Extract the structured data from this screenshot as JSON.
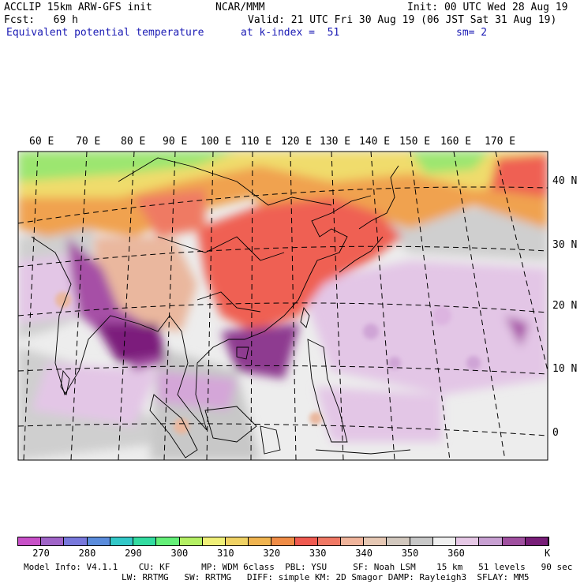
{
  "header": {
    "model": "ACCLIP 15km ARW-GFS init",
    "org": "NCAR/MMM",
    "init": "Init: 00 UTC Wed 28 Aug 19",
    "fcst": "Fcst:   69 h",
    "valid": "Valid: 21 UTC Fri 30 Aug 19 (06 JST Sat 31 Aug 19)",
    "field": "Equivalent potential temperature",
    "level": "at k-index =  51",
    "smooth": "sm= 2"
  },
  "map": {
    "lon_labels": [
      "60 E",
      "70 E",
      "80 E",
      "90 E",
      "100 E",
      "110 E",
      "120 E",
      "130 E",
      "140 E",
      "150 E",
      "160 E",
      "170 E"
    ],
    "lat_labels": [
      "40 N",
      "30 N",
      "20 N",
      "10 N",
      "0"
    ]
  },
  "colorbar": {
    "colors": [
      "#c850c8",
      "#a064c8",
      "#7878dc",
      "#5a8cdc",
      "#32c8c8",
      "#32dca0",
      "#64f078",
      "#b4f064",
      "#f0f078",
      "#f0d264",
      "#f0b450",
      "#f08c46",
      "#f05a50",
      "#f07864",
      "#f0b49b",
      "#e6c8b4",
      "#d2c8be",
      "#c8c8c8",
      "#f0f0f0",
      "#e6c8e6",
      "#c8a0d2",
      "#a050a0",
      "#781e78"
    ],
    "labels": [
      "270",
      "280",
      "290",
      "300",
      "310",
      "320",
      "330",
      "340",
      "350",
      "360",
      "K"
    ]
  },
  "footer": {
    "line1": "Model Info: V4.1.1    CU: KF      MP: WDM 6class  PBL: YSU     SF: Noah LSM    15 km   51 levels   90 sec",
    "line2": "LW: RRTMG   SW: RRTMG   DIFF: simple KM: 2D Smagor DAMP: Rayleigh3  SFLAY: MM5"
  }
}
